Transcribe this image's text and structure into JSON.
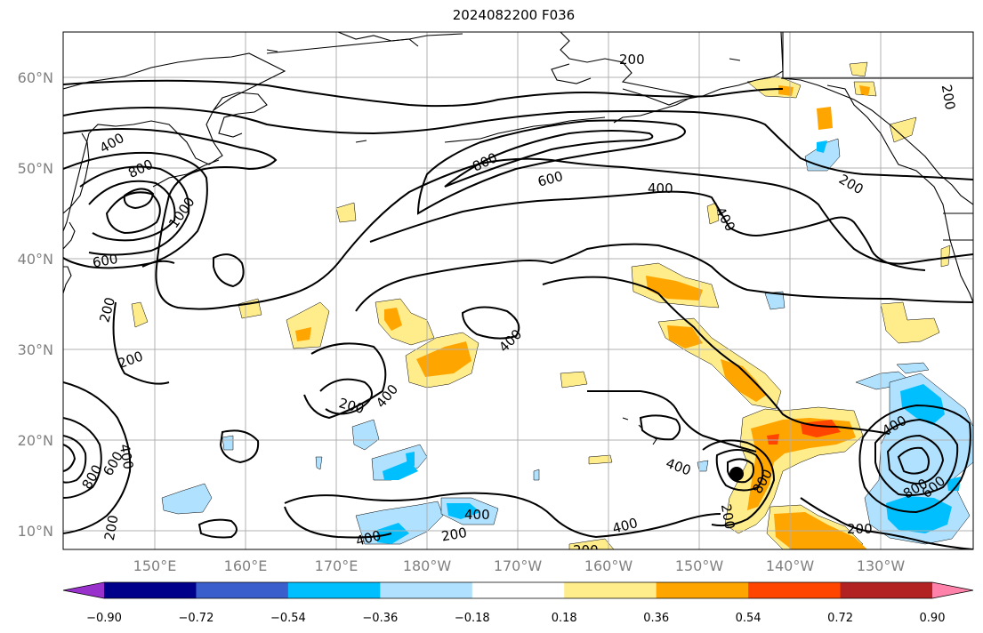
{
  "title": "2024082200 F036",
  "lat_labels": [
    "60°N",
    "50°N",
    "40°N",
    "30°N",
    "20°N",
    "10°N"
  ],
  "lon_labels": [
    "150°E",
    "160°E",
    "170°E",
    "180°W",
    "170°W",
    "160°W",
    "150°W",
    "140°W",
    "130°W"
  ],
  "colorbar": {
    "colors": [
      "#9932CC",
      "#00008B",
      "#3A5FCD",
      "#00BFFF",
      "#B0E2FF",
      "#FFFFFF",
      "#FFEC8B",
      "#FFA500",
      "#FF4500",
      "#B22222",
      "#FF82AB"
    ],
    "tick_labels": [
      "-0.90",
      "-0.72",
      "-0.54",
      "-0.36",
      "-0.18",
      "0.18",
      "0.36",
      "0.54",
      "0.72",
      "0.90"
    ]
  },
  "contour_labels": [
    "200",
    "400",
    "600",
    "800",
    "1000"
  ],
  "fill_colors": {
    "yellow": "#FFEC8B",
    "orange": "#FFA500",
    "red": "#FF4500",
    "lightblue": "#B0E2FF",
    "blue": "#00BFFF"
  }
}
